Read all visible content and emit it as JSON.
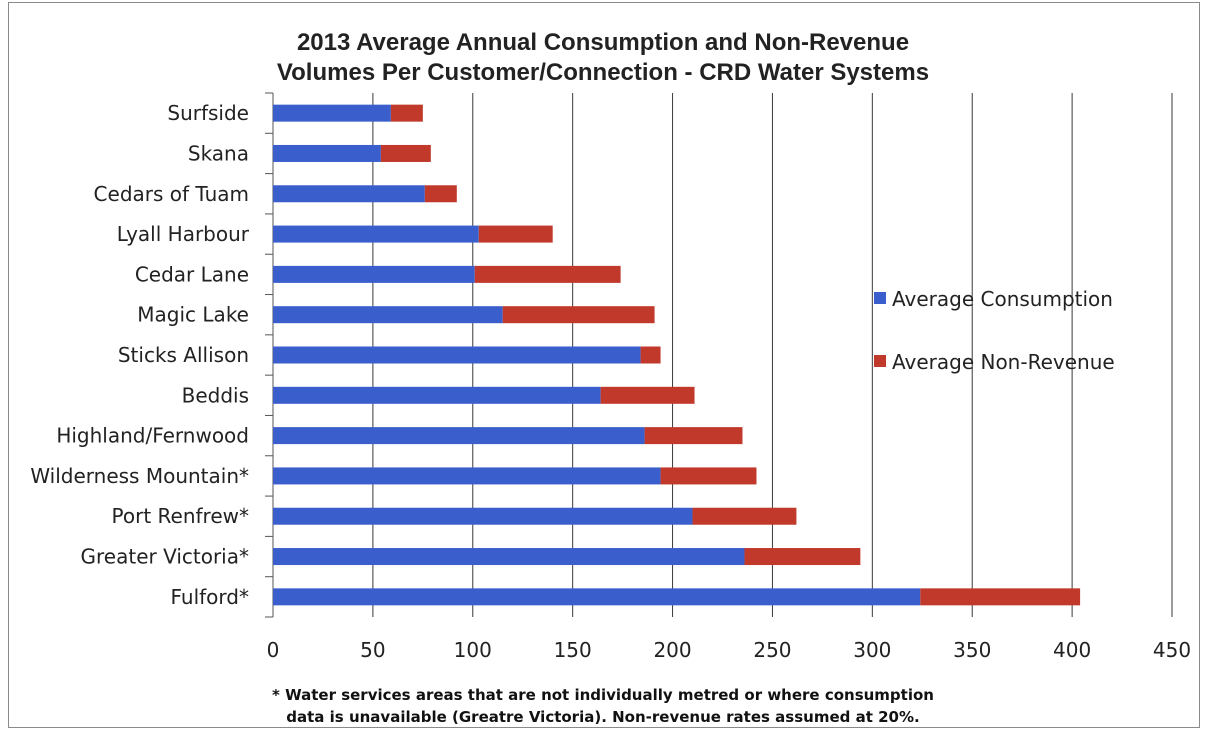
{
  "chart_data": {
    "type": "bar",
    "orientation": "horizontal",
    "stacked": true,
    "title_line1": "2013 Average Annual Consumption and Non-Revenue",
    "title_line2": "Volumes Per Customer/Connection - CRD Water Systems",
    "categories": [
      "Surfside",
      "Skana",
      "Cedars of Tuam",
      "Lyall Harbour",
      "Cedar Lane",
      "Magic Lake",
      "Sticks Allison",
      "Beddis",
      "Highland/Fernwood",
      "Wilderness Mountain*",
      "Port Renfrew*",
      "Greater Victoria*",
      "Fulford*"
    ],
    "series": [
      {
        "name": "Average Consumption",
        "color": "#3a5fcd",
        "values": [
          59,
          54,
          76,
          103,
          101,
          115,
          184,
          164,
          186,
          194,
          210,
          236,
          324
        ]
      },
      {
        "name": "Average Non-Revenue",
        "color": "#c0392b",
        "values": [
          16,
          25,
          16,
          37,
          73,
          76,
          10,
          47,
          49,
          48,
          52,
          58,
          80
        ]
      }
    ],
    "xlim": [
      0,
      450
    ],
    "xticks": [
      "0",
      "50",
      "100",
      "150",
      "200",
      "250",
      "300",
      "350",
      "400",
      "450"
    ],
    "grid": "vertical",
    "legend_position": "right",
    "footnote_line1": "* Water services areas that are not individually metred  or  where consumption",
    "footnote_line2": "data is unavailable (Greatre Victoria). Non-revenue rates  assumed at 20%."
  }
}
